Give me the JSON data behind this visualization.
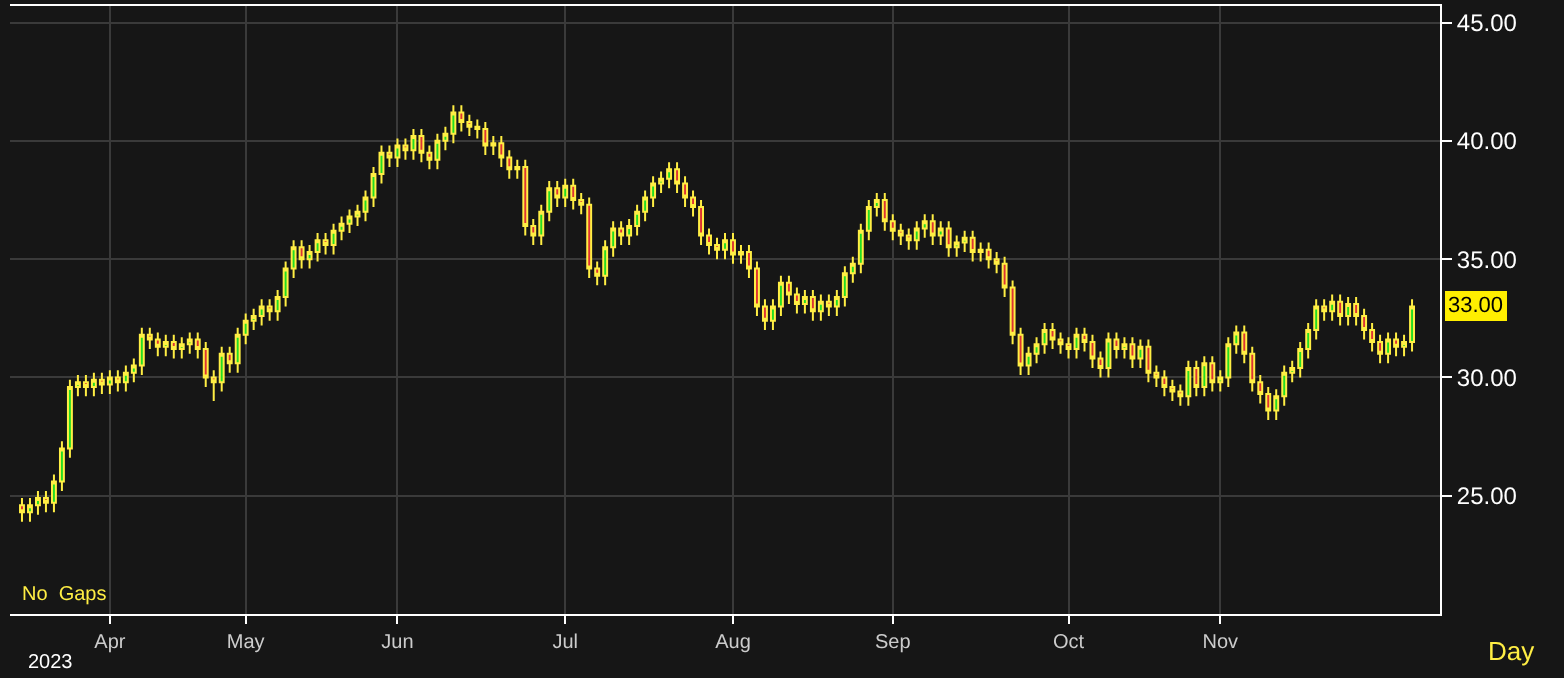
{
  "chart_data": {
    "type": "candlestick",
    "categories": [
      null,
      null,
      null,
      null,
      null,
      null,
      null,
      null,
      null,
      null,
      null,
      "Apr",
      null,
      null,
      null,
      null,
      null,
      null,
      null,
      null,
      null,
      null,
      null,
      null,
      null,
      null,
      null,
      null,
      "May",
      null,
      null,
      null,
      null,
      null,
      null,
      null,
      null,
      null,
      null,
      null,
      null,
      null,
      null,
      null,
      null,
      null,
      null,
      "Jun",
      null,
      null,
      null,
      null,
      null,
      null,
      null,
      null,
      null,
      null,
      null,
      null,
      null,
      null,
      null,
      null,
      null,
      null,
      null,
      null,
      "Jul",
      null,
      null,
      null,
      null,
      null,
      null,
      null,
      null,
      null,
      null,
      null,
      null,
      null,
      null,
      null,
      null,
      null,
      null,
      null,
      null,
      "Aug",
      null,
      null,
      null,
      null,
      null,
      null,
      null,
      null,
      null,
      null,
      null,
      null,
      null,
      null,
      null,
      null,
      null,
      null,
      null,
      "Sep",
      null,
      null,
      null,
      null,
      null,
      null,
      null,
      null,
      null,
      null,
      null,
      null,
      null,
      null,
      null,
      null,
      null,
      null,
      null,
      null,
      null,
      "Oct",
      null,
      null,
      null,
      null,
      null,
      null,
      null,
      null,
      null,
      null,
      null,
      null,
      null,
      null,
      null,
      null,
      null,
      null,
      "Nov",
      null,
      null,
      null,
      null,
      null,
      null,
      null,
      null,
      null,
      null,
      null,
      null,
      null,
      null,
      null,
      null,
      null,
      null,
      null,
      null,
      null,
      null,
      null,
      null
    ],
    "ohlc": [
      [
        24.6,
        24.9,
        23.9,
        24.3
      ],
      [
        24.3,
        24.9,
        23.9,
        24.6
      ],
      [
        24.6,
        25.2,
        24.2,
        24.9
      ],
      [
        24.9,
        25.2,
        24.3,
        24.7
      ],
      [
        24.7,
        25.9,
        24.3,
        25.6
      ],
      [
        25.6,
        27.3,
        25.2,
        27.0
      ],
      [
        27.0,
        29.9,
        26.6,
        29.6
      ],
      [
        29.6,
        30.1,
        29.2,
        29.8
      ],
      [
        29.8,
        30.1,
        29.2,
        29.6
      ],
      [
        29.6,
        30.2,
        29.2,
        29.9
      ],
      [
        29.9,
        30.2,
        29.3,
        29.7
      ],
      [
        29.7,
        30.3,
        29.3,
        30.0
      ],
      [
        30.0,
        30.3,
        29.4,
        29.8
      ],
      [
        29.8,
        30.5,
        29.4,
        30.2
      ],
      [
        30.2,
        30.8,
        29.8,
        30.5
      ],
      [
        30.5,
        32.1,
        30.1,
        31.8
      ],
      [
        31.8,
        32.1,
        31.2,
        31.6
      ],
      [
        31.6,
        31.9,
        30.9,
        31.3
      ],
      [
        31.3,
        31.8,
        30.9,
        31.5
      ],
      [
        31.5,
        31.8,
        30.8,
        31.2
      ],
      [
        31.2,
        31.7,
        30.8,
        31.4
      ],
      [
        31.4,
        31.9,
        31.0,
        31.6
      ],
      [
        31.6,
        31.9,
        30.8,
        31.2
      ],
      [
        31.2,
        31.5,
        29.6,
        30.0
      ],
      [
        30.0,
        30.3,
        29.0,
        29.8
      ],
      [
        29.8,
        31.3,
        29.4,
        31.0
      ],
      [
        31.0,
        31.3,
        30.2,
        30.6
      ],
      [
        30.6,
        32.1,
        30.2,
        31.8
      ],
      [
        31.8,
        32.7,
        31.4,
        32.4
      ],
      [
        32.4,
        32.9,
        32.0,
        32.6
      ],
      [
        32.6,
        33.3,
        32.2,
        33.0
      ],
      [
        33.0,
        33.3,
        32.4,
        32.8
      ],
      [
        32.8,
        33.7,
        32.4,
        33.4
      ],
      [
        33.4,
        34.9,
        33.0,
        34.6
      ],
      [
        34.6,
        35.8,
        34.2,
        35.5
      ],
      [
        35.5,
        35.8,
        34.6,
        35.0
      ],
      [
        35.0,
        35.6,
        34.6,
        35.3
      ],
      [
        35.3,
        36.1,
        34.9,
        35.8
      ],
      [
        35.8,
        36.1,
        35.2,
        35.6
      ],
      [
        35.6,
        36.5,
        35.2,
        36.2
      ],
      [
        36.2,
        36.8,
        35.8,
        36.5
      ],
      [
        36.5,
        37.1,
        36.1,
        36.8
      ],
      [
        36.8,
        37.3,
        36.4,
        37.0
      ],
      [
        37.0,
        37.9,
        36.6,
        37.6
      ],
      [
        37.6,
        38.9,
        37.2,
        38.6
      ],
      [
        38.6,
        39.8,
        38.2,
        39.5
      ],
      [
        39.5,
        39.8,
        38.9,
        39.3
      ],
      [
        39.3,
        40.1,
        38.9,
        39.8
      ],
      [
        39.8,
        40.1,
        39.2,
        39.6
      ],
      [
        39.6,
        40.5,
        39.2,
        40.2
      ],
      [
        40.2,
        40.5,
        39.1,
        39.5
      ],
      [
        39.5,
        39.8,
        38.8,
        39.2
      ],
      [
        39.2,
        40.3,
        38.8,
        40.0
      ],
      [
        40.0,
        40.6,
        39.6,
        40.3
      ],
      [
        40.3,
        41.5,
        39.9,
        41.2
      ],
      [
        41.2,
        41.5,
        40.4,
        40.8
      ],
      [
        40.8,
        41.1,
        40.2,
        40.6
      ],
      [
        40.6,
        40.9,
        40.1,
        40.5
      ],
      [
        40.5,
        40.8,
        39.4,
        39.8
      ],
      [
        39.8,
        40.2,
        39.4,
        39.9
      ],
      [
        39.9,
        40.2,
        38.9,
        39.3
      ],
      [
        39.3,
        39.6,
        38.4,
        38.8
      ],
      [
        38.8,
        39.2,
        38.4,
        38.9
      ],
      [
        38.9,
        39.2,
        36.0,
        36.4
      ],
      [
        36.4,
        36.7,
        35.6,
        36.0
      ],
      [
        36.0,
        37.3,
        35.6,
        37.0
      ],
      [
        37.0,
        38.3,
        36.6,
        38.0
      ],
      [
        38.0,
        38.3,
        37.2,
        37.6
      ],
      [
        37.6,
        38.4,
        37.2,
        38.1
      ],
      [
        38.1,
        38.4,
        37.1,
        37.5
      ],
      [
        37.5,
        37.8,
        36.9,
        37.3
      ],
      [
        37.3,
        37.6,
        34.2,
        34.6
      ],
      [
        34.6,
        34.9,
        33.9,
        34.3
      ],
      [
        34.3,
        35.8,
        33.9,
        35.5
      ],
      [
        35.5,
        36.6,
        35.1,
        36.3
      ],
      [
        36.3,
        36.6,
        35.6,
        36.0
      ],
      [
        36.0,
        36.7,
        35.6,
        36.4
      ],
      [
        36.4,
        37.3,
        36.0,
        37.0
      ],
      [
        37.0,
        37.9,
        36.6,
        37.6
      ],
      [
        37.6,
        38.5,
        37.2,
        38.2
      ],
      [
        38.2,
        38.7,
        37.8,
        38.4
      ],
      [
        38.4,
        39.1,
        38.0,
        38.8
      ],
      [
        38.8,
        39.1,
        37.8,
        38.2
      ],
      [
        38.2,
        38.5,
        37.2,
        37.6
      ],
      [
        37.6,
        37.9,
        36.8,
        37.2
      ],
      [
        37.2,
        37.5,
        35.6,
        36.0
      ],
      [
        36.0,
        36.3,
        35.2,
        35.6
      ],
      [
        35.6,
        35.9,
        35.0,
        35.4
      ],
      [
        35.4,
        36.1,
        35.0,
        35.8
      ],
      [
        35.8,
        36.1,
        34.8,
        35.2
      ],
      [
        35.2,
        35.6,
        34.8,
        35.3
      ],
      [
        35.3,
        35.6,
        34.2,
        34.6
      ],
      [
        34.6,
        34.9,
        32.6,
        33.0
      ],
      [
        33.0,
        33.3,
        32.0,
        32.4
      ],
      [
        32.4,
        33.3,
        32.0,
        33.0
      ],
      [
        33.0,
        34.3,
        32.6,
        34.0
      ],
      [
        34.0,
        34.3,
        33.1,
        33.5
      ],
      [
        33.5,
        33.8,
        32.7,
        33.1
      ],
      [
        33.1,
        33.7,
        32.7,
        33.4
      ],
      [
        33.4,
        33.7,
        32.4,
        32.8
      ],
      [
        32.8,
        33.5,
        32.4,
        33.2
      ],
      [
        33.2,
        33.5,
        32.6,
        33.0
      ],
      [
        33.0,
        33.7,
        32.6,
        33.4
      ],
      [
        33.4,
        34.7,
        33.0,
        34.4
      ],
      [
        34.4,
        35.1,
        34.0,
        34.8
      ],
      [
        34.8,
        36.5,
        34.4,
        36.2
      ],
      [
        36.2,
        37.5,
        35.8,
        37.2
      ],
      [
        37.2,
        37.8,
        36.8,
        37.5
      ],
      [
        37.5,
        37.8,
        36.2,
        36.6
      ],
      [
        36.6,
        36.9,
        35.8,
        36.2
      ],
      [
        36.2,
        36.5,
        35.6,
        36.0
      ],
      [
        36.0,
        36.3,
        35.4,
        35.8
      ],
      [
        35.8,
        36.6,
        35.4,
        36.3
      ],
      [
        36.3,
        36.9,
        35.9,
        36.6
      ],
      [
        36.6,
        36.9,
        35.6,
        36.0
      ],
      [
        36.0,
        36.6,
        35.6,
        36.3
      ],
      [
        36.3,
        36.6,
        35.1,
        35.5
      ],
      [
        35.5,
        36.0,
        35.1,
        35.7
      ],
      [
        35.7,
        36.2,
        35.3,
        35.9
      ],
      [
        35.9,
        36.2,
        34.9,
        35.3
      ],
      [
        35.3,
        35.7,
        34.9,
        35.4
      ],
      [
        35.4,
        35.7,
        34.6,
        35.0
      ],
      [
        35.0,
        35.3,
        34.4,
        34.8
      ],
      [
        34.8,
        35.1,
        33.4,
        33.8
      ],
      [
        33.8,
        34.1,
        31.4,
        31.8
      ],
      [
        31.8,
        32.1,
        30.1,
        30.5
      ],
      [
        30.5,
        31.3,
        30.1,
        31.0
      ],
      [
        31.0,
        31.7,
        30.6,
        31.4
      ],
      [
        31.4,
        32.3,
        31.0,
        32.0
      ],
      [
        32.0,
        32.3,
        31.2,
        31.6
      ],
      [
        31.6,
        31.9,
        31.0,
        31.4
      ],
      [
        31.4,
        31.7,
        30.8,
        31.2
      ],
      [
        31.2,
        32.1,
        30.8,
        31.8
      ],
      [
        31.8,
        32.1,
        31.1,
        31.5
      ],
      [
        31.5,
        31.8,
        30.4,
        30.8
      ],
      [
        30.8,
        31.1,
        30.0,
        30.4
      ],
      [
        30.4,
        31.9,
        30.0,
        31.6
      ],
      [
        31.6,
        31.9,
        30.8,
        31.2
      ],
      [
        31.2,
        31.7,
        30.8,
        31.4
      ],
      [
        31.4,
        31.7,
        30.4,
        30.8
      ],
      [
        30.8,
        31.6,
        30.4,
        31.3
      ],
      [
        31.3,
        31.6,
        29.8,
        30.2
      ],
      [
        30.2,
        30.5,
        29.6,
        30.0
      ],
      [
        30.0,
        30.3,
        29.2,
        29.6
      ],
      [
        29.6,
        29.9,
        29.0,
        29.4
      ],
      [
        29.4,
        29.7,
        28.8,
        29.2
      ],
      [
        29.2,
        30.7,
        28.8,
        30.4
      ],
      [
        30.4,
        30.7,
        29.2,
        29.6
      ],
      [
        29.6,
        30.9,
        29.2,
        30.6
      ],
      [
        30.6,
        30.9,
        29.4,
        29.8
      ],
      [
        29.8,
        30.3,
        29.4,
        30.0
      ],
      [
        30.0,
        31.7,
        29.6,
        31.4
      ],
      [
        31.4,
        32.2,
        31.0,
        31.9
      ],
      [
        31.9,
        32.2,
        30.6,
        31.0
      ],
      [
        31.0,
        31.3,
        29.4,
        29.8
      ],
      [
        29.8,
        30.1,
        28.9,
        29.3
      ],
      [
        29.3,
        29.6,
        28.2,
        28.6
      ],
      [
        28.6,
        29.5,
        28.2,
        29.2
      ],
      [
        29.2,
        30.5,
        28.8,
        30.2
      ],
      [
        30.2,
        30.7,
        29.8,
        30.4
      ],
      [
        30.4,
        31.5,
        30.0,
        31.2
      ],
      [
        31.2,
        32.3,
        30.8,
        32.0
      ],
      [
        32.0,
        33.3,
        31.6,
        33.0
      ],
      [
        33.0,
        33.3,
        32.4,
        32.8
      ],
      [
        32.8,
        33.5,
        32.4,
        33.2
      ],
      [
        33.2,
        33.5,
        32.2,
        32.6
      ],
      [
        32.6,
        33.4,
        32.2,
        33.1
      ],
      [
        33.1,
        33.4,
        32.2,
        32.6
      ],
      [
        32.6,
        32.9,
        31.6,
        32.0
      ],
      [
        32.0,
        32.3,
        31.1,
        31.5
      ],
      [
        31.5,
        31.8,
        30.6,
        31.0
      ],
      [
        31.0,
        31.9,
        30.6,
        31.6
      ],
      [
        31.6,
        31.9,
        30.9,
        31.3
      ],
      [
        31.3,
        31.8,
        30.9,
        31.5
      ],
      [
        31.5,
        33.3,
        31.1,
        33.0
      ]
    ],
    "ylim": [
      20,
      45.7
    ],
    "yticks": [
      {
        "value": 25,
        "label": "25.00"
      },
      {
        "value": 30,
        "label": "30.00"
      },
      {
        "value": 35,
        "label": "35.00"
      },
      {
        "value": 40,
        "label": "40.00"
      },
      {
        "value": 45,
        "label": "45.00"
      }
    ],
    "grid": true,
    "annotations": [
      "No  Gaps",
      "2023",
      "Day",
      "33.00"
    ]
  }
}
